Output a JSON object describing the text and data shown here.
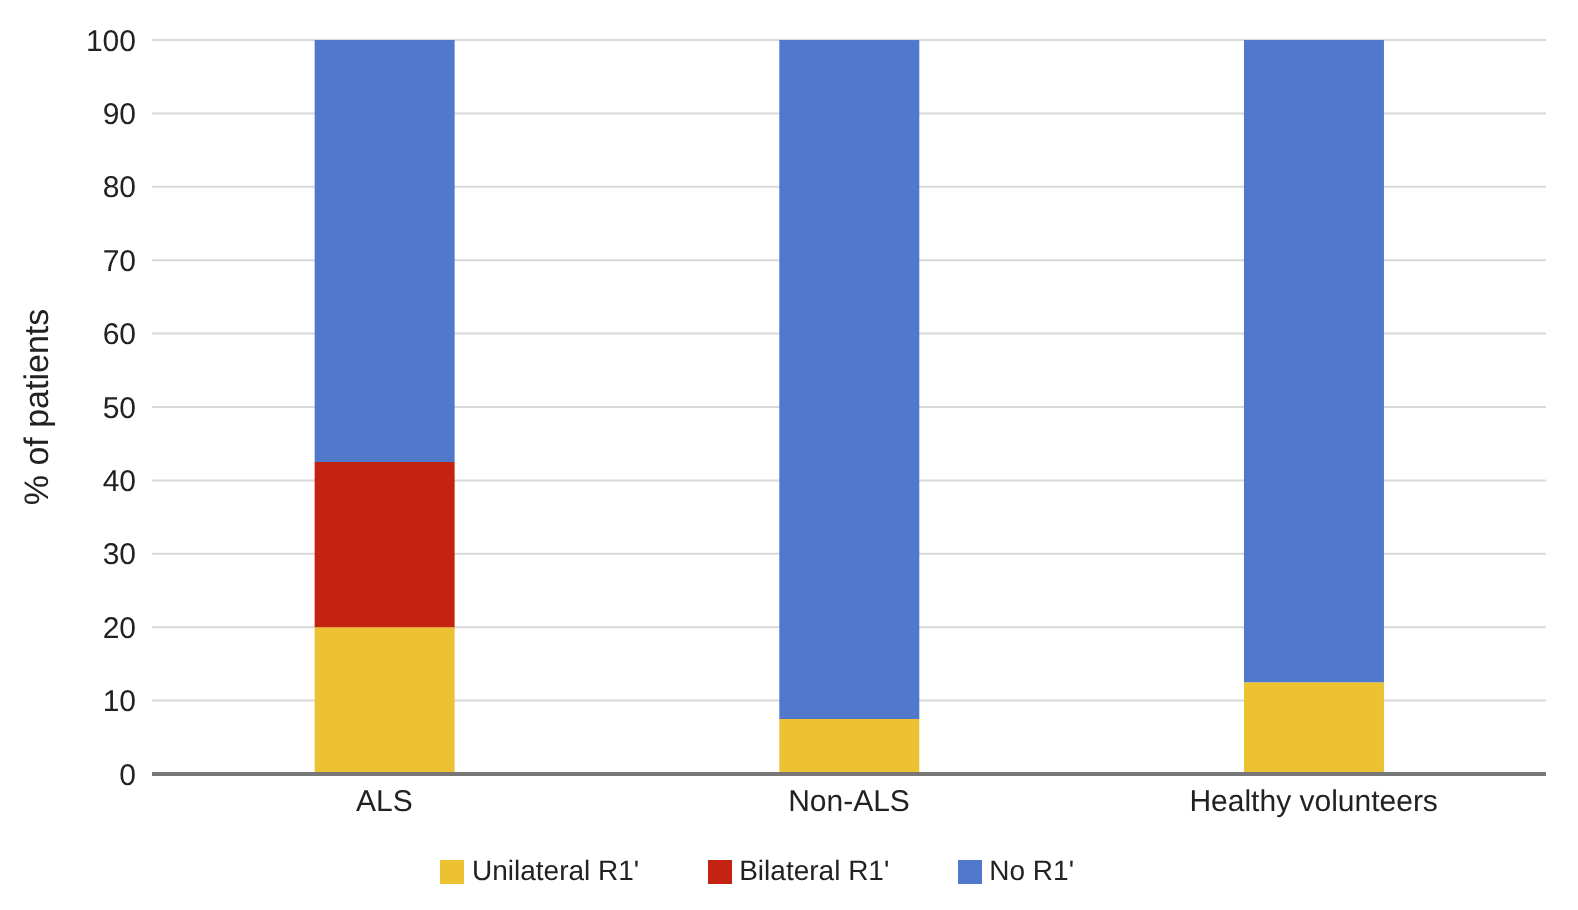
{
  "chart_data": {
    "type": "bar",
    "stacked": true,
    "ylabel": "% of patients",
    "categories": [
      "ALS",
      "Non-ALS",
      "Healthy volunteers"
    ],
    "series": [
      {
        "name": "Unilateral R1'",
        "color": "#ecc232",
        "values": [
          20,
          7.5,
          12.5
        ]
      },
      {
        "name": "Bilateral R1'",
        "color": "#c52312",
        "values": [
          22.5,
          0,
          0
        ]
      },
      {
        "name": "No R1'",
        "color": "#5079cb",
        "values": [
          57.5,
          92.5,
          87.5
        ]
      }
    ],
    "ylim": [
      0,
      100
    ],
    "yticks": [
      0,
      10,
      20,
      30,
      40,
      50,
      60,
      70,
      80,
      90,
      100
    ],
    "grid": "y",
    "legend": "bottom"
  }
}
